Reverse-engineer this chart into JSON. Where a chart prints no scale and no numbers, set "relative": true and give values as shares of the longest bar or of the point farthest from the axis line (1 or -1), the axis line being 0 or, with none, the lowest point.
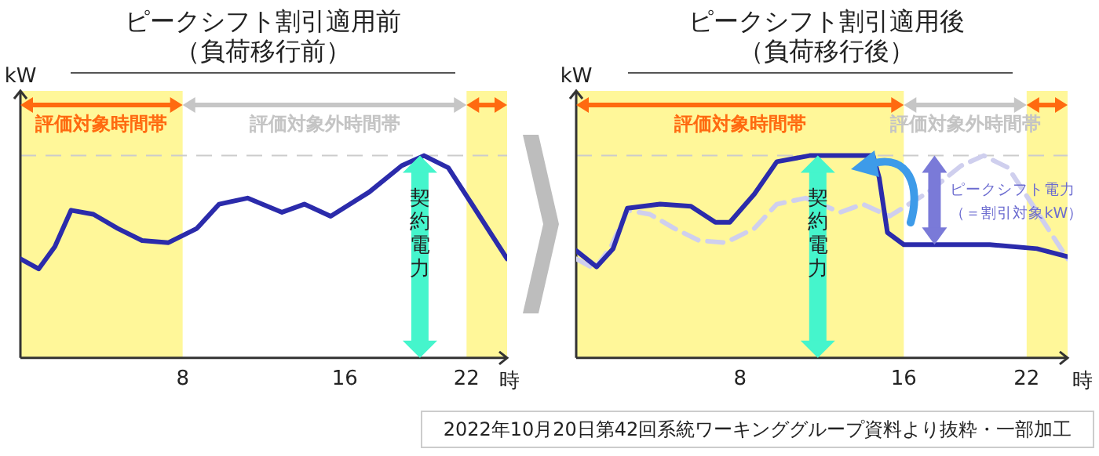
{
  "chart_data": [
    {
      "type": "line",
      "title": "ピークシフト割引適用前",
      "subtitle": "（負荷移行前）",
      "xlabel": "時",
      "ylabel": "kW",
      "relative": true,
      "marker": "none",
      "xlim": [
        0,
        24
      ],
      "xticks": [
        8,
        16,
        22
      ],
      "series": [
        {
          "color": "#2b2bab",
          "line_style": "solid",
          "x": [
            0,
            0.9,
            1.7,
            2.5,
            3.6,
            4.8,
            6.0,
            7.3,
            8.7,
            9.8,
            11.2,
            12.9,
            14.0,
            15.3,
            17.2,
            18.8,
            19.9,
            21.1,
            22.2,
            24
          ],
          "values": [
            0.49,
            0.44,
            0.55,
            0.73,
            0.71,
            0.64,
            0.58,
            0.57,
            0.64,
            0.76,
            0.79,
            0.72,
            0.76,
            0.7,
            0.82,
            0.95,
            1.0,
            0.94,
            0.77,
            0.49
          ]
        }
      ],
      "bands": [
        {
          "axis": "x",
          "from": 0,
          "to": 8,
          "label": "評価対象時間帯",
          "color": "#fff799"
        },
        {
          "axis": "x",
          "from": 22,
          "to": 24,
          "label": null,
          "color": "#fff799"
        }
      ],
      "ref_lines": [
        {
          "axis": "y",
          "value": 1,
          "label": null,
          "color": "#cccccc",
          "line_style": "dashed"
        }
      ],
      "annotations": [
        {
          "text": "契約電力",
          "x": 19.7,
          "y": 1
        },
        "評価対象外時間帯"
      ]
    },
    {
      "type": "line",
      "title": "ピークシフト割引適用後",
      "subtitle": "（負荷移行後）",
      "xlabel": "時",
      "ylabel": "kW",
      "relative": true,
      "marker": "none",
      "xlim": [
        0,
        24
      ],
      "xticks": [
        8,
        16,
        22
      ],
      "series": [
        {
          "color": "#2b2bab",
          "line_style": "solid",
          "x": [
            0,
            1.0,
            1.8,
            2.5,
            4.1,
            5.6,
            6.8,
            7.5,
            8.7,
            9.8,
            11.4,
            14.5,
            14.8,
            15.2,
            16.0,
            17.9,
            20.2,
            22.5,
            24
          ],
          "values": [
            0.53,
            0.45,
            0.54,
            0.74,
            0.76,
            0.75,
            0.67,
            0.67,
            0.81,
            0.97,
            1.0,
            1.0,
            0.89,
            0.62,
            0.56,
            0.56,
            0.56,
            0.54,
            0.5
          ]
        },
        {
          "color": "#cfcfee",
          "line_style": "dashed",
          "x": [
            0,
            0.9,
            1.7,
            2.5,
            3.6,
            4.8,
            6.0,
            7.3,
            8.7,
            9.8,
            11.2,
            12.9,
            14.0,
            15.3,
            17.2,
            18.8,
            19.9,
            21.1,
            22.2,
            24
          ],
          "values": [
            0.49,
            0.44,
            0.55,
            0.73,
            0.71,
            0.64,
            0.58,
            0.57,
            0.64,
            0.76,
            0.79,
            0.72,
            0.76,
            0.7,
            0.82,
            0.95,
            1.0,
            0.94,
            0.77,
            0.49
          ]
        }
      ],
      "bands": [
        {
          "axis": "x",
          "from": 0,
          "to": 16,
          "label": "評価対象時間帯",
          "color": "#fff799"
        },
        {
          "axis": "x",
          "from": 22,
          "to": 24,
          "label": null,
          "color": "#fff799"
        }
      ],
      "ref_lines": [
        {
          "axis": "y",
          "value": 1,
          "label": null,
          "color": "#cccccc",
          "line_style": "dashed"
        }
      ],
      "annotations": [
        {
          "text": "契約電力",
          "x": 11.8,
          "y": 1
        },
        {
          "text": "ピークシフト電力（＝割引対象kW）",
          "x": 17.5,
          "y": 1
        },
        "評価対象外時間帯",
        "2022年10月20日第42回系統ワーキンググループ資料より抜粋・一部加工"
      ]
    }
  ]
}
